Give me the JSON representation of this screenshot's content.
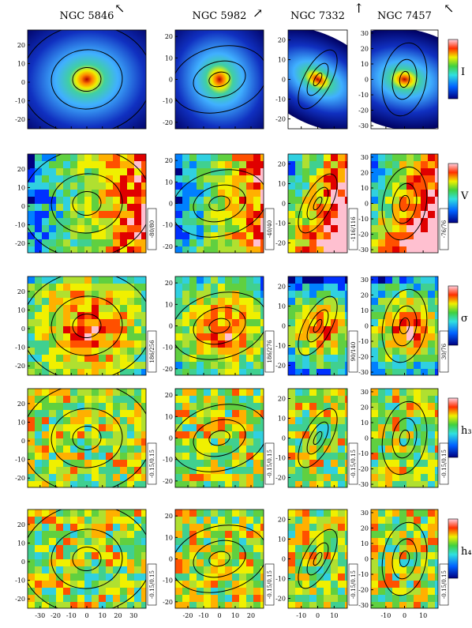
{
  "columns": [
    {
      "title": "NGC 5846",
      "xlim": [
        -38,
        38
      ],
      "ylim": [
        -25,
        28
      ],
      "xticks": [
        -30,
        -20,
        -10,
        0,
        10,
        20,
        30
      ],
      "yticks": [
        -20,
        -10,
        0,
        10,
        20
      ]
    },
    {
      "title": "NGC 5982",
      "xlim": [
        -28,
        28
      ],
      "ylim": [
        -23,
        23
      ],
      "xticks": [
        -20,
        -10,
        0,
        10,
        20
      ],
      "yticks": [
        -20,
        -10,
        0,
        10,
        20
      ]
    },
    {
      "title": "NGC 7332",
      "xlim": [
        -18,
        18
      ],
      "ylim": [
        -25,
        25
      ],
      "xticks": [
        -10,
        0,
        10
      ],
      "yticks": [
        -20,
        -10,
        0,
        10,
        20
      ]
    },
    {
      "title": "NGC 7457",
      "xlim": [
        -18,
        18
      ],
      "ylim": [
        -32,
        32
      ],
      "xticks": [
        -10,
        0,
        10
      ],
      "yticks": [
        -30,
        -20,
        -10,
        0,
        10,
        20,
        30
      ]
    }
  ],
  "rows": [
    {
      "label": "I"
    },
    {
      "label": "V",
      "ranges": [
        "-80/80",
        "-40/40",
        "-116/116",
        "-76/76"
      ]
    },
    {
      "label": "σ",
      "ranges": [
        "186/256",
        "186/276",
        "90/140",
        "30/76"
      ]
    },
    {
      "label": "h₃",
      "ranges": [
        "-0.15/0.15",
        "-0.15/0.15",
        "-0.15/0.15",
        "-0.15/0.15"
      ]
    },
    {
      "label": "h₄",
      "ranges": [
        "-0.15/0.15",
        "-0.15/0.15",
        "-0.15/0.15",
        "-0.15/0.15"
      ]
    }
  ]
}
